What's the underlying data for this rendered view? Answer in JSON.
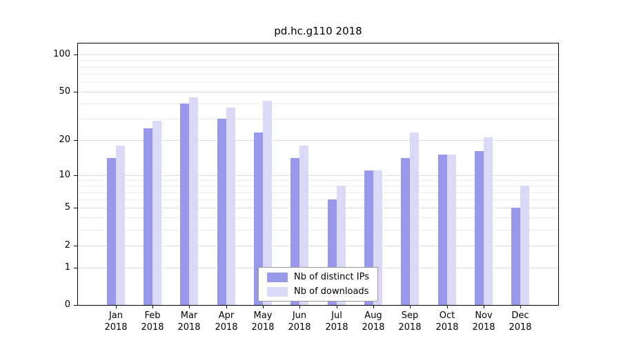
{
  "chart_data": {
    "type": "bar",
    "title": "pd.hc.g110 2018",
    "categories": [
      "Jan 2018",
      "Feb 2018",
      "Mar 2018",
      "Apr 2018",
      "May 2018",
      "Jun 2018",
      "Jul 2018",
      "Aug 2018",
      "Sep 2018",
      "Oct 2018",
      "Nov 2018",
      "Dec 2018"
    ],
    "series": [
      {
        "name": "Nb of distinct IPs",
        "color": "#9999ec",
        "values": [
          14,
          25,
          40,
          30,
          23,
          14,
          6,
          11,
          14,
          15,
          16,
          5
        ]
      },
      {
        "name": "Nb of downloads",
        "color": "#dadaf8",
        "values": [
          18,
          29,
          45,
          37,
          42,
          18,
          8,
          11,
          23,
          15,
          21,
          8
        ]
      }
    ],
    "yticks": [
      0,
      1,
      2,
      5,
      10,
      20,
      50,
      100
    ],
    "ylim": [
      0,
      125
    ],
    "yscale": "log10(1+y)",
    "grid": "horizontal",
    "legend": {
      "position": "bottom-center",
      "entries": [
        "Nb of distinct IPs",
        "Nb of downloads"
      ]
    },
    "colors": {
      "axis": "#000000",
      "gridline_minor": "#ececec",
      "gridline_major": "#dedede",
      "background": "#ffffff",
      "text": "#000000"
    }
  }
}
